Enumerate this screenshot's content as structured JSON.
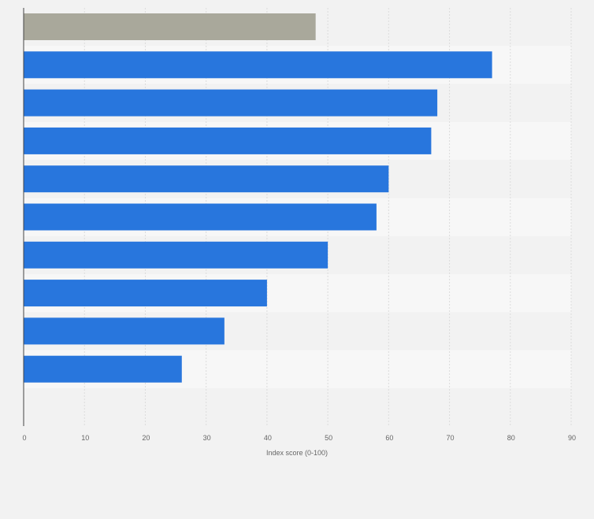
{
  "chart_data": {
    "type": "bar",
    "orientation": "horizontal",
    "title": "",
    "xlabel": "Index score (0-100)",
    "ylabel": "",
    "xlim": [
      0,
      90
    ],
    "ticks": [
      "0",
      "10",
      "20",
      "30",
      "40",
      "50",
      "60",
      "70",
      "80",
      "90"
    ],
    "grid": true,
    "category_labels_visible": false,
    "values": [
      48,
      77,
      68,
      67,
      60,
      58,
      50,
      40,
      33,
      26
    ],
    "highlight_index": 0,
    "colors": {
      "bar": "#2876dd",
      "highlight": "#a9a89b",
      "band_dark": "#f2f2f2",
      "band_light": "#f7f7f7",
      "grid": "#dcdcdc",
      "axis": "#444444",
      "background": "#f2f2f2"
    }
  }
}
